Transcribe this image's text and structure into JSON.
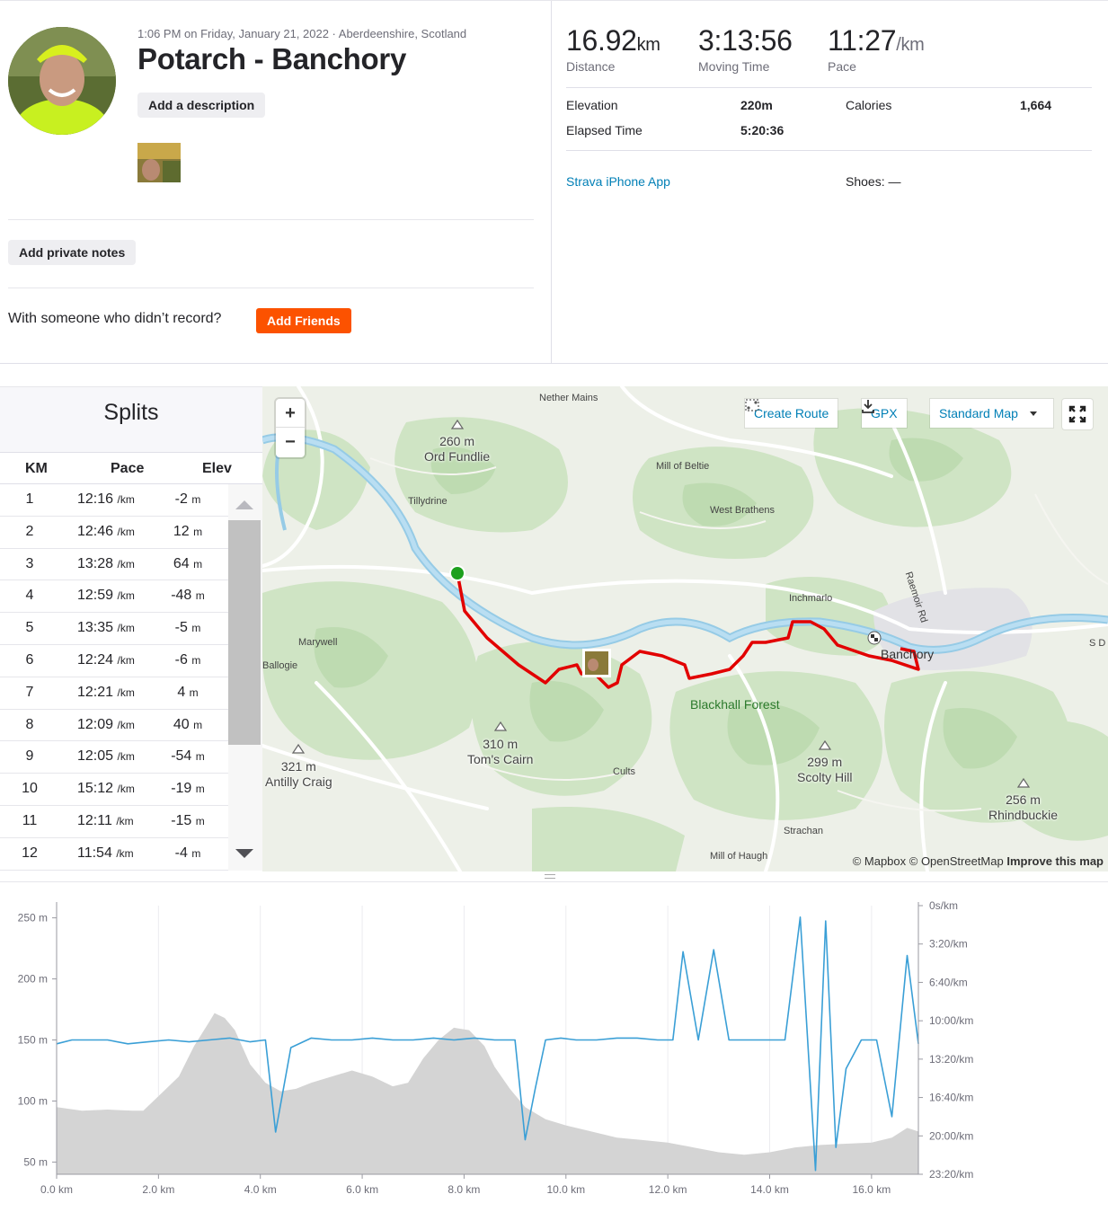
{
  "header": {
    "meta": "1:06 PM on Friday, January 21, 2022 · Aberdeenshire, Scotland",
    "title": "Potarch - Banchory",
    "add_description": "Add a description",
    "add_private_notes": "Add private notes",
    "with_someone": "With someone who didn’t record?",
    "add_friends": "Add Friends"
  },
  "stats": {
    "distance": {
      "value": "16.92",
      "unit": "km",
      "label": "Distance"
    },
    "moving_time": {
      "value": "3:13:56",
      "label": "Moving Time"
    },
    "pace": {
      "value": "11:27",
      "unit": "/km",
      "label": "Pace"
    },
    "elevation": {
      "label": "Elevation",
      "value": "220m"
    },
    "calories": {
      "label": "Calories",
      "value": "1,664"
    },
    "elapsed": {
      "label": "Elapsed Time",
      "value": "5:20:36"
    },
    "device": "Strava iPhone App",
    "shoes": "Shoes: —"
  },
  "splits": {
    "title": "Splits",
    "headers": {
      "km": "KM",
      "pace": "Pace",
      "elev": "Elev"
    },
    "pace_unit": "/km",
    "elev_unit": "m",
    "rows": [
      {
        "km": "1",
        "pace": "12:16",
        "elev": "-2"
      },
      {
        "km": "2",
        "pace": "12:46",
        "elev": "12"
      },
      {
        "km": "3",
        "pace": "13:28",
        "elev": "64"
      },
      {
        "km": "4",
        "pace": "12:59",
        "elev": "-48"
      },
      {
        "km": "5",
        "pace": "13:35",
        "elev": "-5"
      },
      {
        "km": "6",
        "pace": "12:24",
        "elev": "-6"
      },
      {
        "km": "7",
        "pace": "12:21",
        "elev": "4"
      },
      {
        "km": "8",
        "pace": "12:09",
        "elev": "40"
      },
      {
        "km": "9",
        "pace": "12:05",
        "elev": "-54"
      },
      {
        "km": "10",
        "pace": "15:12",
        "elev": "-19"
      },
      {
        "km": "11",
        "pace": "12:11",
        "elev": "-15"
      },
      {
        "km": "12",
        "pace": "11:54",
        "elev": "-4"
      }
    ]
  },
  "map": {
    "zoom_in": "+",
    "zoom_out": "−",
    "create_route": "Create Route",
    "gpx": "GPX",
    "map_style": "Standard Map",
    "attribution": "© Mapbox © OpenStreetMap",
    "improve": "Improve this map",
    "places": {
      "nether_mains": "Nether Mains",
      "tillydrine": "Tillydrine",
      "mill_of_beltie": "Mill of Beltie",
      "west_brathens": "West Brathens",
      "inchmarlo": "Inchmarlo",
      "raemoir_rd": "Raemoir Rd",
      "marywell": "Marywell",
      "ballogie": "Ballogie",
      "banchory": "Banchory",
      "s_d": "S D",
      "cults": "Cults",
      "strachan": "Strachan",
      "mill_of_haugh": "Mill of Haugh"
    },
    "peaks": {
      "ord_fundlie": {
        "height": "260 m",
        "name": "Ord Fundlie"
      },
      "toms_cairn": {
        "height": "310 m",
        "name": "Tom's Cairn"
      },
      "antilly_craig": {
        "height": "321 m",
        "name": "Antilly Craig"
      },
      "scolty_hill": {
        "height": "299 m",
        "name": "Scolty Hill"
      },
      "rhindbuckie": {
        "height": "256 m",
        "name": "Rhindbuckie"
      }
    },
    "forest": "Blackhall Forest",
    "colors": {
      "route": "#e20000",
      "river": "#a8d8f0",
      "start": "#1ea01e"
    }
  },
  "chart_data": {
    "type": "area",
    "x_unit": "km",
    "xlim": [
      0,
      16.92
    ],
    "x_ticks": [
      "0.0 km",
      "2.0 km",
      "4.0 km",
      "6.0 km",
      "8.0 km",
      "10.0 km",
      "12.0 km",
      "14.0 km",
      "16.0 km"
    ],
    "y_left_ticks": [
      "250 m",
      "200 m",
      "150 m",
      "100 m",
      "50 m"
    ],
    "y_left_lim": [
      40,
      260
    ],
    "y_right_ticks": [
      "0s/km",
      "3:20/km",
      "6:40/km",
      "10:00/km",
      "13:20/km",
      "16:40/km",
      "20:00/km",
      "23:20/km"
    ],
    "y_right_lim_s_per_km": [
      0,
      1400
    ],
    "series": [
      {
        "kind": "elevation_area",
        "color": "#d4d4d4",
        "x": [
          0,
          0.5,
          1.0,
          1.5,
          1.7,
          1.9,
          2.1,
          2.4,
          2.7,
          3.0,
          3.1,
          3.3,
          3.5,
          3.8,
          4.1,
          4.4,
          4.7,
          5.0,
          5.4,
          5.8,
          6.2,
          6.6,
          6.9,
          7.2,
          7.5,
          7.8,
          8.1,
          8.4,
          8.6,
          8.9,
          9.2,
          9.6,
          10.0,
          10.5,
          11.0,
          11.5,
          12.0,
          12.5,
          13.0,
          13.5,
          14.0,
          14.5,
          15.0,
          15.5,
          16.0,
          16.4,
          16.7,
          16.92
        ],
        "y": [
          95,
          92,
          93,
          92,
          92,
          100,
          108,
          120,
          145,
          165,
          172,
          168,
          158,
          130,
          115,
          108,
          110,
          115,
          120,
          125,
          120,
          112,
          115,
          135,
          150,
          160,
          158,
          145,
          128,
          110,
          95,
          85,
          80,
          75,
          70,
          68,
          66,
          62,
          58,
          56,
          58,
          62,
          64,
          65,
          66,
          70,
          78,
          75
        ]
      },
      {
        "kind": "pace_line",
        "color": "#3a9fd6",
        "x": [
          0,
          0.3,
          0.6,
          1.0,
          1.4,
          1.8,
          2.2,
          2.6,
          3.0,
          3.4,
          3.8,
          4.1,
          4.3,
          4.6,
          5.0,
          5.4,
          5.8,
          6.2,
          6.6,
          7.0,
          7.4,
          7.8,
          8.2,
          8.6,
          9.0,
          9.2,
          9.4,
          9.6,
          9.9,
          10.2,
          10.6,
          11.0,
          11.4,
          11.8,
          12.1,
          12.3,
          12.6,
          12.9,
          13.2,
          13.6,
          14.0,
          14.3,
          14.6,
          14.9,
          15.1,
          15.3,
          15.5,
          15.8,
          16.1,
          16.4,
          16.7,
          16.92
        ],
        "y": [
          720,
          700,
          700,
          700,
          720,
          710,
          700,
          710,
          700,
          690,
          710,
          700,
          1180,
          740,
          690,
          700,
          700,
          690,
          700,
          700,
          690,
          700,
          690,
          700,
          700,
          1220,
          950,
          700,
          690,
          700,
          700,
          690,
          690,
          700,
          700,
          240,
          700,
          230,
          700,
          700,
          700,
          700,
          60,
          1380,
          80,
          1260,
          850,
          700,
          700,
          1100,
          260,
          720
        ]
      }
    ]
  }
}
